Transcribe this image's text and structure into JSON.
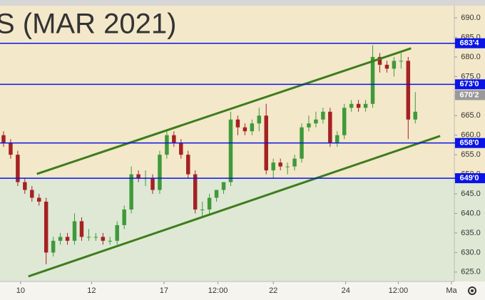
{
  "chart_data": {
    "type": "candlestick",
    "watermark": "S (MAR 2021)",
    "open": [
      660,
      658,
      655,
      648,
      646,
      644,
      643,
      630,
      633,
      634,
      633,
      638,
      634,
      634,
      634,
      633,
      633,
      637,
      641,
      650,
      649,
      649,
      646,
      655,
      660,
      658,
      655,
      650,
      641,
      641,
      644,
      646,
      648,
      664,
      662,
      661,
      663,
      665,
      651,
      653,
      652,
      652,
      654,
      662,
      663,
      664,
      666,
      658,
      660,
      667,
      668,
      667,
      668,
      680,
      678,
      677,
      679,
      679,
      664
    ],
    "high": [
      661,
      659,
      656,
      649,
      647,
      645,
      644,
      634,
      635,
      635,
      640,
      639,
      636,
      635,
      635,
      634,
      638,
      642,
      652,
      651,
      651,
      650,
      656,
      661,
      661,
      659,
      656,
      651,
      643,
      645,
      646,
      648,
      666,
      665,
      663,
      664,
      667,
      668,
      654,
      654,
      653,
      655,
      663,
      665,
      666,
      667,
      667,
      661,
      668,
      669,
      669,
      669,
      683,
      681,
      679,
      680,
      681,
      680,
      671
    ],
    "low": [
      657,
      654,
      647,
      645,
      643,
      642,
      627,
      629,
      632,
      632,
      632,
      633,
      633,
      633,
      632,
      632,
      632,
      636,
      640,
      648,
      647,
      645,
      645,
      654,
      657,
      654,
      649,
      640,
      639,
      640,
      643,
      645,
      647,
      660,
      660,
      660,
      661,
      650,
      649,
      651,
      650,
      651,
      653,
      661,
      662,
      663,
      657,
      657,
      659,
      666,
      666,
      666,
      667,
      676,
      676,
      675,
      677,
      659,
      663
    ],
    "close": [
      658,
      655,
      648,
      646,
      644,
      643,
      630,
      633,
      634,
      633,
      638,
      634,
      634,
      634,
      633,
      633,
      637,
      641,
      650,
      649,
      649,
      646,
      655,
      660,
      658,
      655,
      650,
      641,
      641,
      644,
      646,
      648,
      664,
      662,
      661,
      663,
      665,
      651,
      653,
      652,
      652,
      654,
      662,
      663,
      664,
      666,
      658,
      660,
      667,
      668,
      667,
      668,
      680,
      678,
      677,
      679,
      679,
      664,
      666
    ],
    "up_color": "#3f9a3a",
    "down_color": "#a52222",
    "xlim": [
      0,
      64
    ],
    "ylim": [
      622.6,
      693.1
    ],
    "xticks": [
      {
        "value": 2.9,
        "label": "10"
      },
      {
        "value": 12.9,
        "label": "12"
      },
      {
        "value": 23.1,
        "label": "17"
      },
      {
        "value": 30.7,
        "label": "12:00"
      },
      {
        "value": 38.5,
        "label": "22"
      },
      {
        "value": 48.7,
        "label": "24"
      },
      {
        "value": 56.1,
        "label": "12:00"
      },
      {
        "value": 63.6,
        "label": "Ma"
      }
    ],
    "yticks": [
      {
        "value": 625,
        "label": "625.0"
      },
      {
        "value": 630,
        "label": "630.0"
      },
      {
        "value": 635,
        "label": "635.0"
      },
      {
        "value": 640,
        "label": "640.0"
      },
      {
        "value": 645,
        "label": "645.0"
      },
      {
        "value": 650,
        "label": "650.0"
      },
      {
        "value": 655,
        "label": "655.0"
      },
      {
        "value": 660,
        "label": "660.0"
      },
      {
        "value": 665,
        "label": "665.0"
      },
      {
        "value": 670,
        "label": "670.0"
      },
      {
        "value": 675,
        "label": "675.0"
      },
      {
        "value": 680,
        "label": "680.0"
      },
      {
        "value": 685,
        "label": "685.0"
      },
      {
        "value": 690,
        "label": "690.0"
      }
    ],
    "levels": [
      {
        "value": 683.5,
        "label": "683'4"
      },
      {
        "value": 673,
        "label": "673'0"
      },
      {
        "value": 658,
        "label": "658'0"
      },
      {
        "value": 649,
        "label": "649'0"
      }
    ],
    "level_color": "#0a14e6",
    "last_price": {
      "value": 670.25,
      "label": "670'2"
    },
    "trendlines": [
      {
        "x": [
          5.2,
          57.9
        ],
        "y": [
          650.1,
          682.2
        ]
      },
      {
        "x": [
          4.0,
          62.0
        ],
        "y": [
          623.9,
          659.8
        ]
      }
    ],
    "trend_color": "#3d7d1c",
    "zones": [
      {
        "from": 649,
        "to": 693.1,
        "color": "#f3e8ca"
      },
      {
        "from": 622.6,
        "to": 649,
        "color": "#dfe8d5"
      }
    ]
  }
}
